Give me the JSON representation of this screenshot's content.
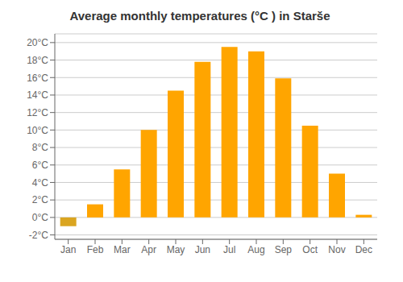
{
  "chart_data": {
    "type": "bar",
    "title": "Average monthly temperatures (°C ) in Starše",
    "categories": [
      "Jan",
      "Feb",
      "Mar",
      "Apr",
      "May",
      "Jun",
      "Jul",
      "Aug",
      "Sep",
      "Oct",
      "Nov",
      "Dec"
    ],
    "values": [
      -1.0,
      1.5,
      5.5,
      10.0,
      14.5,
      17.8,
      19.5,
      19.0,
      15.9,
      10.5,
      5.0,
      0.3
    ],
    "colors": [
      "#DAA520",
      "#FFA500",
      "#FFA500",
      "#FFA500",
      "#FFA500",
      "#FFA500",
      "#FFA500",
      "#FFA500",
      "#FFA500",
      "#FFA500",
      "#FFA500",
      "#FFA500"
    ],
    "ylim": [
      -2.5,
      21
    ],
    "yticks": [
      {
        "value": -2,
        "label": "-2°C"
      },
      {
        "value": 0,
        "label": "0°C"
      },
      {
        "value": 2,
        "label": "2°C"
      },
      {
        "value": 4,
        "label": "4°C"
      },
      {
        "value": 6,
        "label": "6°C"
      },
      {
        "value": 8,
        "label": "8°C"
      },
      {
        "value": 10,
        "label": "10°C"
      },
      {
        "value": 12,
        "label": "12°C"
      },
      {
        "value": 14,
        "label": "14°C"
      },
      {
        "value": 16,
        "label": "16°C"
      },
      {
        "value": 18,
        "label": "18°C"
      },
      {
        "value": 20,
        "label": "20°C"
      }
    ],
    "grid": true
  }
}
